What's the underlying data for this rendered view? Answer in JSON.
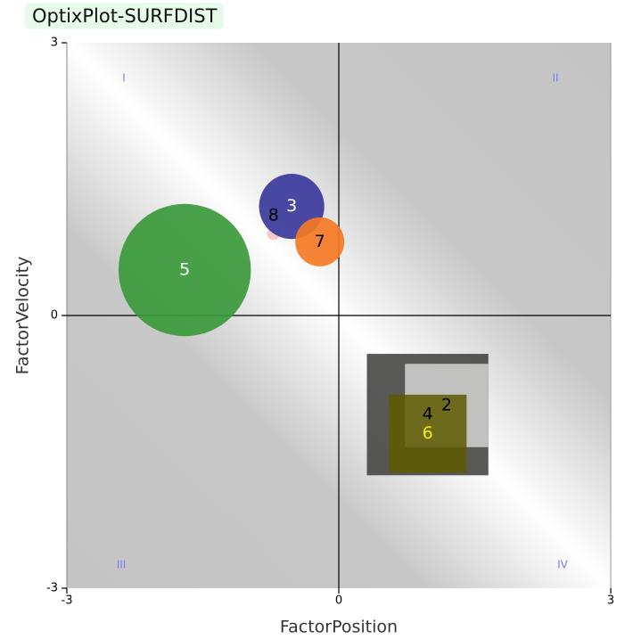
{
  "chart_data": {
    "type": "bubble",
    "title": "OptixPlot-SURFDIST",
    "xlabel": "FactorPosition",
    "ylabel": "FactorVelocity",
    "xlim": [
      -3,
      3
    ],
    "ylim": [
      -3,
      3
    ],
    "xticks": [
      -3,
      0,
      3
    ],
    "yticks": [
      -3,
      0,
      3
    ],
    "quadrant_labels": [
      "I",
      "II",
      "III",
      "IV"
    ],
    "points": [
      {
        "label": "4",
        "shape": "square",
        "color": "#3c3c3a",
        "label_color": "#000000",
        "x": 0.98,
        "y": -1.09,
        "size": 0.67
      },
      {
        "label": "2",
        "shape": "square",
        "color": "#d4d4d4",
        "label_color": "#000000",
        "x": 1.19,
        "y": -0.99,
        "size": 0.46
      },
      {
        "label": "6",
        "shape": "square",
        "color": "#5f5a00",
        "label_color": "#f2f000",
        "x": 0.98,
        "y": -1.3,
        "size": 0.43
      },
      {
        "label": "5",
        "shape": "circle",
        "color": "#3a9a3a",
        "label_color": "#ffffff",
        "x": -1.7,
        "y": 0.5,
        "size": 0.73
      },
      {
        "label": "8",
        "shape": "circle",
        "color": "#f4c4c8",
        "label_color": "#000000",
        "x": -0.72,
        "y": 0.9,
        "size": 0.07
      },
      {
        "label": "3",
        "shape": "circle",
        "color": "#3a3a9c",
        "label_color": "#ffffff",
        "x": -0.52,
        "y": 1.2,
        "size": 0.36
      },
      {
        "label": "7",
        "shape": "circle",
        "color": "#f57a25",
        "label_color": "#000000",
        "x": -0.21,
        "y": 0.81,
        "size": 0.27
      }
    ]
  }
}
